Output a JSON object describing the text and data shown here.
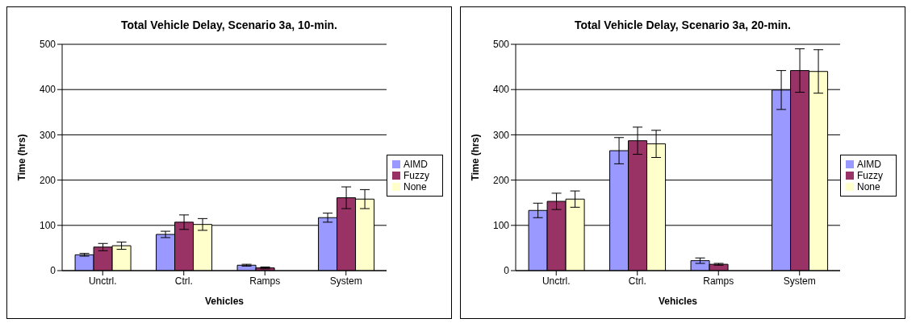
{
  "chart_data": [
    {
      "type": "bar",
      "title": "Total Vehicle Delay, Scenario 3a, 10-min.",
      "xlabel": "Vehicles",
      "ylabel": "Time (hrs)",
      "categories": [
        "Unctrl.",
        "Ctrl.",
        "Ramps",
        "System"
      ],
      "series": [
        {
          "name": "AIMD",
          "color": "#9999ff",
          "values": [
            35,
            80,
            12,
            117
          ],
          "errors": [
            3,
            7,
            2,
            10
          ]
        },
        {
          "name": "Fuzzy",
          "color": "#993366",
          "values": [
            52,
            107,
            6,
            161
          ],
          "errors": [
            8,
            16,
            2,
            24
          ]
        },
        {
          "name": "None",
          "color": "#ffffcc",
          "values": [
            55,
            102,
            0,
            158
          ],
          "errors": [
            8,
            13,
            null,
            21
          ]
        }
      ],
      "ylim": [
        0,
        500
      ],
      "yticks": [
        0,
        100,
        200,
        300,
        400,
        500
      ],
      "grid": "y",
      "legend": "right"
    },
    {
      "type": "bar",
      "title": "Total Vehicle Delay, Scenario 3a, 20-min.",
      "xlabel": "Vehicles",
      "ylabel": "Time (hrs)",
      "categories": [
        "Unctrl.",
        "Ctrl.",
        "Ramps",
        "System"
      ],
      "series": [
        {
          "name": "AIMD",
          "color": "#9999ff",
          "values": [
            133,
            265,
            22,
            399
          ],
          "errors": [
            16,
            29,
            6,
            43
          ]
        },
        {
          "name": "Fuzzy",
          "color": "#993366",
          "values": [
            153,
            287,
            14,
            442
          ],
          "errors": [
            18,
            30,
            2,
            48
          ]
        },
        {
          "name": "None",
          "color": "#ffffcc",
          "values": [
            158,
            280,
            0,
            440
          ],
          "errors": [
            18,
            30,
            null,
            48
          ]
        }
      ],
      "ylim": [
        0,
        500
      ],
      "yticks": [
        0,
        100,
        200,
        300,
        400,
        500
      ],
      "grid": "y",
      "legend": "right"
    }
  ]
}
